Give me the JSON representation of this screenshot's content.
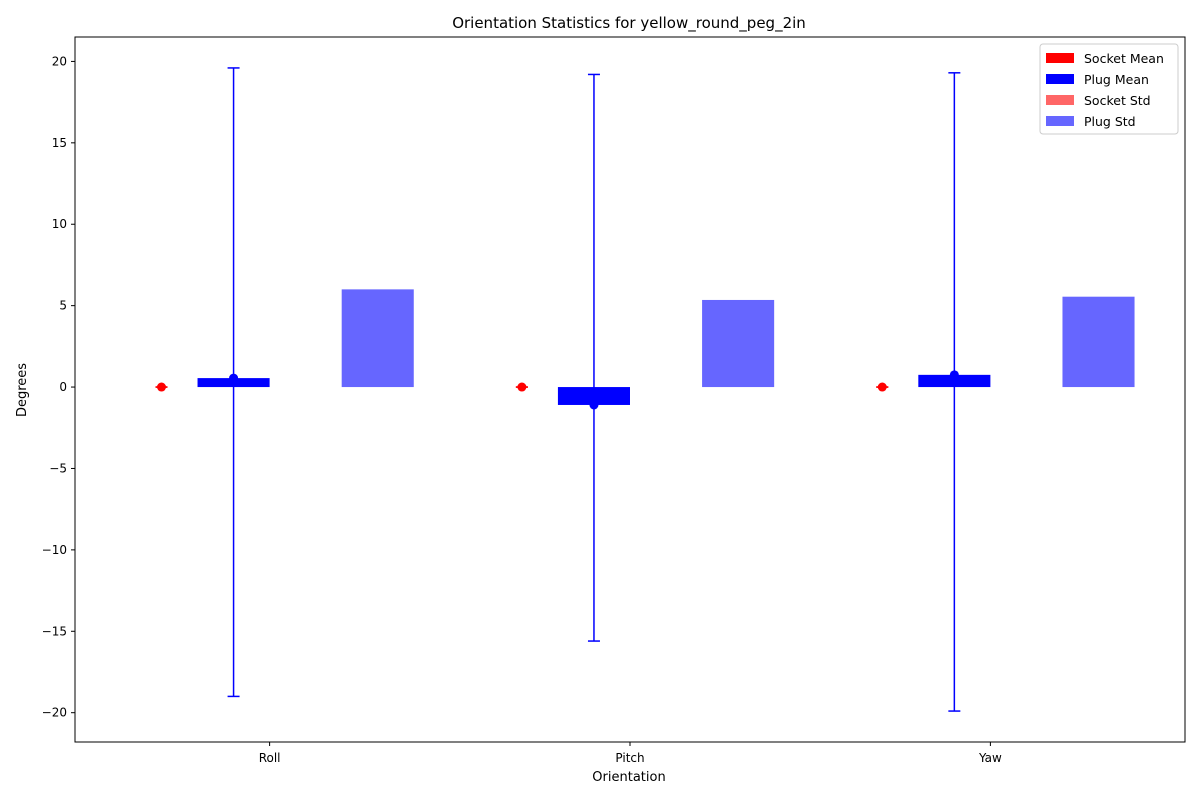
{
  "chart_data": {
    "type": "bar",
    "title": "Orientation Statistics for yellow_round_peg_2in",
    "xlabel": "Orientation",
    "ylabel": "Degrees",
    "categories": [
      "Roll",
      "Pitch",
      "Yaw"
    ],
    "ylim": [
      -21.8,
      21.5
    ],
    "yticks": [
      -20,
      -15,
      -10,
      -5,
      0,
      5,
      10,
      15,
      20
    ],
    "ytick_labels": [
      "−20",
      "−15",
      "−10",
      "−5",
      "0",
      "5",
      "10",
      "15",
      "20"
    ],
    "grid": false,
    "legend_position": "top-right",
    "series": [
      {
        "name": "Socket Mean",
        "kind": "bar",
        "values": [
          0.0,
          0.0,
          0.0
        ],
        "color": "#ff0000"
      },
      {
        "name": "Plug Mean",
        "kind": "bar",
        "values": [
          0.55,
          -1.1,
          0.75
        ],
        "color": "#0000ff"
      },
      {
        "name": "Socket Std",
        "kind": "bar",
        "values": [
          0.0,
          0.0,
          0.0
        ],
        "color": "#ff6666"
      },
      {
        "name": "Plug Std",
        "kind": "bar",
        "values": [
          6.0,
          5.35,
          5.55
        ],
        "color": "#6666ff"
      }
    ],
    "errorbars": [
      {
        "series": "Socket Mean",
        "values": [
          0.0,
          0.0,
          0.0
        ],
        "lower": [
          0.0,
          0.0,
          0.0
        ],
        "upper": [
          0.0,
          0.0,
          0.0
        ],
        "color": "#ff0000"
      },
      {
        "series": "Plug Mean",
        "values": [
          0.55,
          -1.1,
          0.75
        ],
        "lower": [
          -19.0,
          -15.6,
          -19.9
        ],
        "upper": [
          19.6,
          19.2,
          19.3
        ],
        "color": "#0000ff"
      }
    ]
  }
}
